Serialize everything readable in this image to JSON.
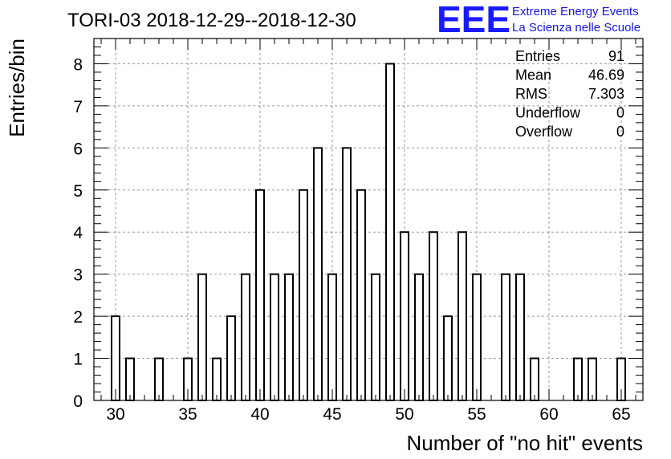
{
  "chart_data": {
    "type": "bar",
    "title": "TORI-03 2018-12-29--2018-12-30",
    "xlabel": "Number of \"no hit\" events",
    "ylabel": "Entries/bin",
    "xlim": [
      28.5,
      66.5
    ],
    "ylim": [
      0,
      8.6
    ],
    "bin_width": 0.5,
    "x": [
      30,
      31,
      33,
      35,
      36,
      37,
      38,
      39,
      40,
      41,
      42,
      43,
      44,
      45,
      46,
      47,
      48,
      49,
      50,
      51,
      52,
      53,
      54,
      55,
      57,
      58,
      59,
      62,
      63,
      65
    ],
    "values": [
      2,
      1,
      1,
      1,
      3,
      1,
      2,
      3,
      5,
      3,
      3,
      5,
      6,
      3,
      6,
      5,
      3,
      8,
      4,
      3,
      4,
      2,
      4,
      3,
      3,
      3,
      1,
      1,
      1,
      1
    ],
    "x_ticks": [
      30,
      35,
      40,
      45,
      50,
      55,
      60,
      65
    ],
    "x_tick_labels": [
      "30",
      "35",
      "40",
      "45",
      "50",
      "55",
      "60",
      "65"
    ],
    "y_ticks": [
      0,
      1,
      2,
      3,
      4,
      5,
      6,
      7,
      8
    ],
    "y_tick_labels": [
      "0",
      "1",
      "2",
      "3",
      "4",
      "5",
      "6",
      "7",
      "8"
    ],
    "grid": true,
    "colors": {
      "bar_fill": "#ffffff",
      "bar_stroke": "#000000",
      "grid": "#9a9a9a"
    },
    "stats": [
      {
        "label": "Entries",
        "value": "91"
      },
      {
        "label": "Mean",
        "value": "46.69"
      },
      {
        "label": "RMS",
        "value": "7.303"
      },
      {
        "label": "Underflow",
        "value": "0"
      },
      {
        "label": "Overflow",
        "value": "0"
      }
    ]
  },
  "logo": {
    "mark": "EEE",
    "line1": "Extreme Energy Events",
    "line2": "La Scienza nelle Scuole",
    "color": "#1a1aff"
  }
}
